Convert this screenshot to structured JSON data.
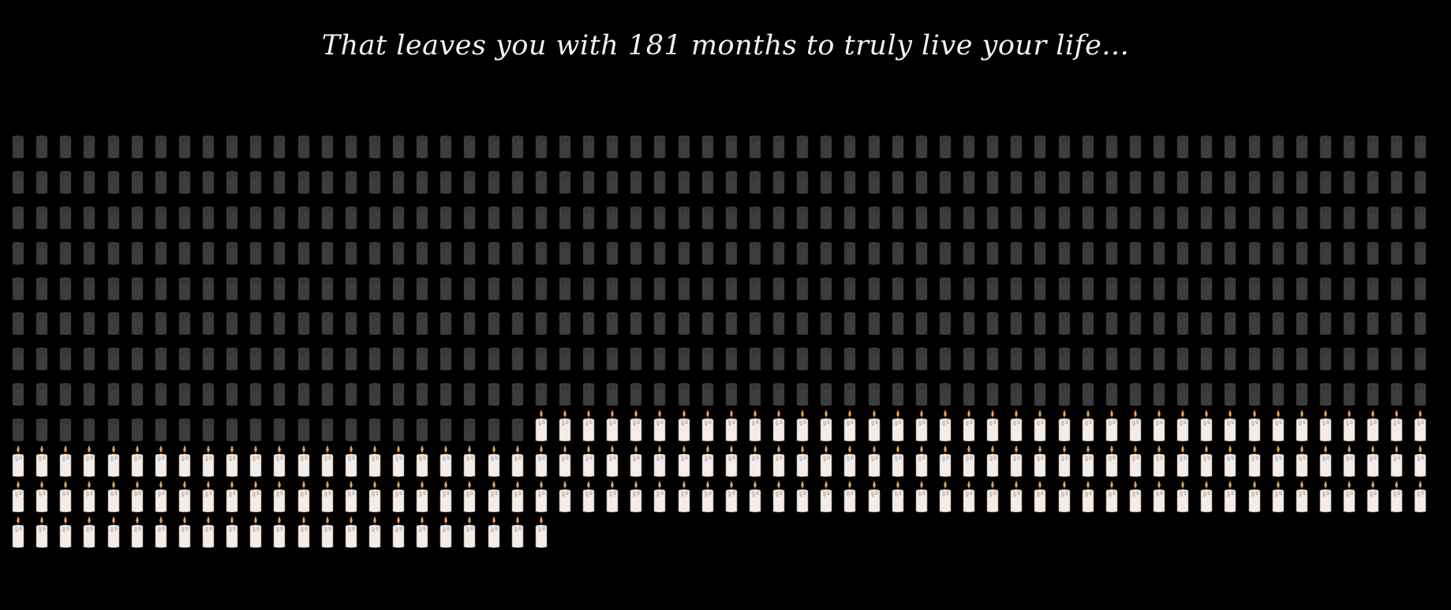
{
  "headline": "That leaves you with 181 months to truly live your life...",
  "candles": {
    "total": 683,
    "remaining": 181,
    "columns": 60,
    "icon": "candle-icon",
    "used_color": "#3d3d3d",
    "used_flame_color": "#3d3d3d",
    "remaining_color": "#f4ece6",
    "remaining_flame_color": "#e8a050"
  }
}
